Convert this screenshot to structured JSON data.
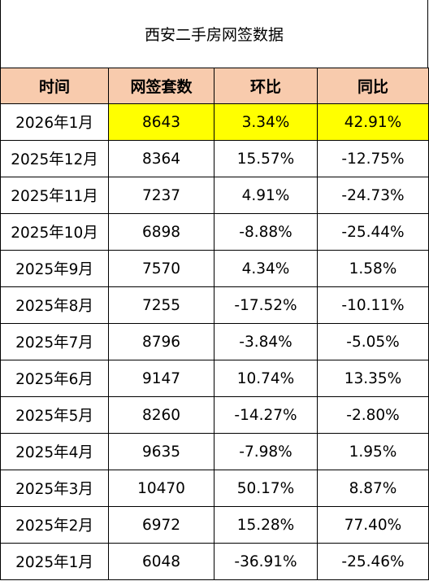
{
  "title": "西安二手房网签数据",
  "highlight_color": "#ffff00",
  "header_color": "#f8cbad",
  "columns": [
    "时间",
    "网签套数",
    "环比",
    "同比"
  ],
  "rows": [
    {
      "time": "2026年1月",
      "count": "8643",
      "mom": "3.34%",
      "yoy": "42.91%",
      "highlight": true
    },
    {
      "time": "2025年12月",
      "count": "8364",
      "mom": "15.57%",
      "yoy": "-12.75%"
    },
    {
      "time": "2025年11月",
      "count": "7237",
      "mom": "4.91%",
      "yoy": "-24.73%"
    },
    {
      "time": "2025年10月",
      "count": "6898",
      "mom": "-8.88%",
      "yoy": "-25.44%"
    },
    {
      "time": "2025年9月",
      "count": "7570",
      "mom": "4.34%",
      "yoy": "1.58%"
    },
    {
      "time": "2025年8月",
      "count": "7255",
      "mom": "-17.52%",
      "yoy": "-10.11%"
    },
    {
      "time": "2025年7月",
      "count": "8796",
      "mom": "-3.84%",
      "yoy": "-5.05%"
    },
    {
      "time": "2025年6月",
      "count": "9147",
      "mom": "10.74%",
      "yoy": "13.35%"
    },
    {
      "time": "2025年5月",
      "count": "8260",
      "mom": "-14.27%",
      "yoy": "-2.80%"
    },
    {
      "time": "2025年4月",
      "count": "9635",
      "mom": "-7.98%",
      "yoy": "1.95%"
    },
    {
      "time": "2025年3月",
      "count": "10470",
      "mom": "50.17%",
      "yoy": "8.87%"
    },
    {
      "time": "2025年2月",
      "count": "6972",
      "mom": "15.28%",
      "yoy": "77.40%"
    },
    {
      "time": "2025年1月",
      "count": "6048",
      "mom": "-36.91%",
      "yoy": "-25.46%"
    }
  ]
}
